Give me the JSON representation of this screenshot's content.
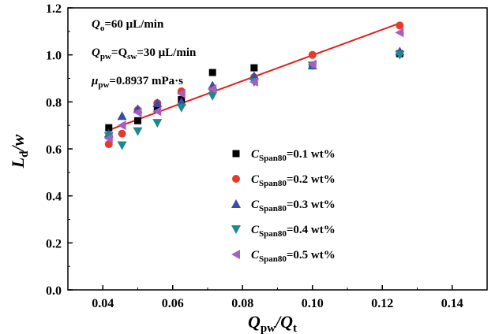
{
  "chart_data": {
    "type": "scatter",
    "xlim": [
      0.03,
      0.15
    ],
    "ylim": [
      0.0,
      1.2
    ],
    "x_ticks": [
      "0.04",
      "0.06",
      "0.08",
      "0.10",
      "0.12",
      "0.14"
    ],
    "y_ticks": [
      "0.0",
      "0.2",
      "0.4",
      "0.6",
      "0.8",
      "1.0",
      "1.2"
    ],
    "x_tick_values": [
      0.04,
      0.06,
      0.08,
      0.1,
      0.12,
      0.14
    ],
    "y_tick_values": [
      0.0,
      0.2,
      0.4,
      0.6,
      0.8,
      1.0,
      1.2
    ],
    "xlabel": {
      "main": "Q",
      "sub1": "pw",
      "mid": "/Q",
      "sub2": "t"
    },
    "ylabel": {
      "main": "L",
      "sub": "d",
      "tail": "/w"
    },
    "grid": false,
    "legend_position": "center-right",
    "annotations": [
      {
        "sym": "Q",
        "sub": "o",
        "rest": "=60 μL/min"
      },
      {
        "sym": "Q",
        "sub": "pw",
        "mid": "=Q",
        "sub2": "sw",
        "rest": "=30 μL/min"
      },
      {
        "sym": "μ",
        "sub": "pw",
        "rest": "=0.8937 mPa·s"
      }
    ],
    "series": [
      {
        "name": "=0.1 wt%",
        "marker": "square",
        "color": "#000000",
        "x": [
          0.0417,
          0.05,
          0.0556,
          0.0625,
          0.0714,
          0.0833,
          0.1,
          0.125
        ],
        "y": [
          0.69,
          0.72,
          0.77,
          0.81,
          0.925,
          0.945,
          0.955,
          1.005
        ]
      },
      {
        "name": "=0.2 wt%",
        "marker": "circle",
        "color": "#e8392b",
        "x": [
          0.0417,
          0.0455,
          0.05,
          0.0556,
          0.0625,
          0.0714,
          0.0833,
          0.1,
          0.125
        ],
        "y": [
          0.62,
          0.665,
          0.765,
          0.795,
          0.845,
          0.855,
          0.905,
          1.0,
          1.125
        ]
      },
      {
        "name": "=0.3 wt%",
        "marker": "triangle-up",
        "color": "#3a4ca8",
        "x": [
          0.0417,
          0.0455,
          0.05,
          0.0556,
          0.0625,
          0.0714,
          0.0833,
          0.1,
          0.125
        ],
        "y": [
          0.665,
          0.74,
          0.77,
          0.795,
          0.8,
          0.87,
          0.91,
          0.955,
          1.015
        ]
      },
      {
        "name": "=0.4 wt%",
        "marker": "triangle-down",
        "color": "#1a8a8f",
        "x": [
          0.0417,
          0.0455,
          0.05,
          0.0556,
          0.0625,
          0.0714,
          0.0833,
          0.1,
          0.125
        ],
        "y": [
          0.655,
          0.615,
          0.675,
          0.71,
          0.775,
          0.825,
          0.885,
          0.955,
          1.0
        ]
      },
      {
        "name": "=0.5 wt%",
        "marker": "triangle-left",
        "color": "#a55fc0",
        "x": [
          0.0417,
          0.0455,
          0.05,
          0.0556,
          0.0625,
          0.0714,
          0.0833,
          0.1,
          0.125
        ],
        "y": [
          0.645,
          0.7,
          0.755,
          0.76,
          0.835,
          0.855,
          0.885,
          0.96,
          1.095
        ]
      }
    ],
    "legend_symbol": {
      "main": "C",
      "sub": "Span80"
    },
    "fit_line": {
      "color": "#e02020",
      "x": [
        0.0417,
        0.125
      ],
      "y": [
        0.68,
        1.135
      ]
    }
  }
}
